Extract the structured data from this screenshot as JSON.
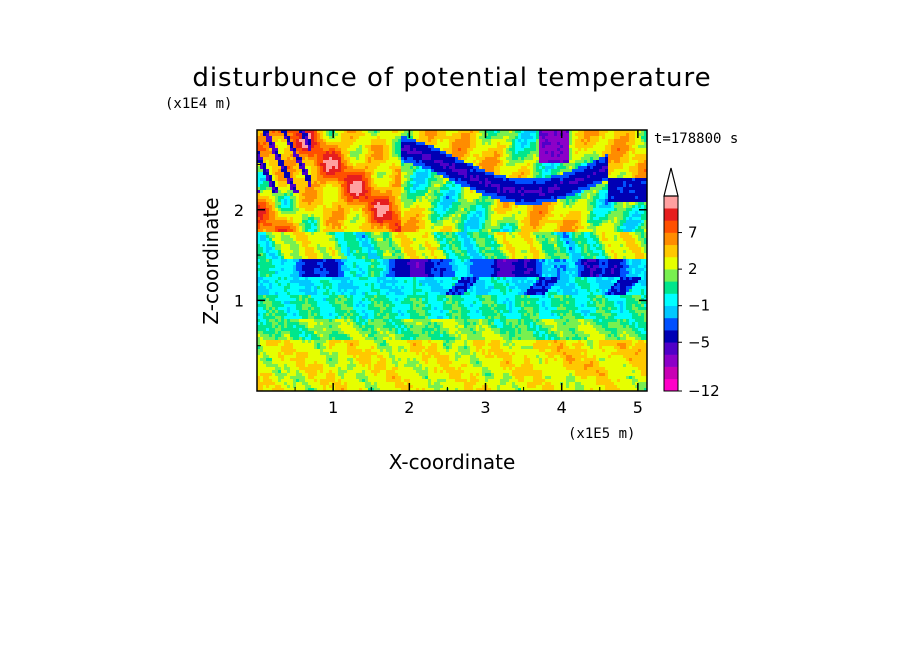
{
  "chart_data": {
    "type": "heatmap",
    "title": "disturbunce of potential temperature",
    "time_label": "t=178800 s",
    "xlabel": "X-coordinate",
    "ylabel": "Z-coordinate",
    "x_scale_label": "(x1E5 m)",
    "y_scale_label": "(x1E4 m)",
    "xlim": [
      0,
      5.12
    ],
    "ylim": [
      0,
      2.88
    ],
    "x_ticks": [
      1,
      2,
      3,
      4,
      5
    ],
    "x_tick_labels": [
      "1",
      "2",
      "3",
      "4",
      "5"
    ],
    "y_ticks": [
      1,
      2
    ],
    "y_tick_labels": [
      "1",
      "2"
    ],
    "colorbar": {
      "levels": [
        -12,
        -10.25,
        -8.5,
        -6.75,
        -5,
        -3.5,
        -2,
        -1,
        0,
        1,
        2,
        3.67,
        5.33,
        7,
        8.5,
        10
      ],
      "labeled_ticks": [
        -12,
        -5,
        -1,
        2,
        7
      ],
      "labels": [
        "−12",
        "−5",
        "−1",
        "2",
        "7"
      ],
      "colors": [
        "#ff00c8",
        "#c800b4",
        "#8c00c8",
        "#5000c8",
        "#0000b4",
        "#0050ff",
        "#00c8ff",
        "#00ffff",
        "#00e68c",
        "#78f050",
        "#e6ff00",
        "#ffc800",
        "#ff8c00",
        "#ff5000",
        "#e61e1e",
        "#ffa0a0"
      ],
      "extend": "max",
      "extend_color": "#ffffff"
    },
    "field_description": "lower troposphere mostly yellow/green, cyan and blue layer near z=1.2, upper region with orange/red and dark blue wave patterns"
  }
}
